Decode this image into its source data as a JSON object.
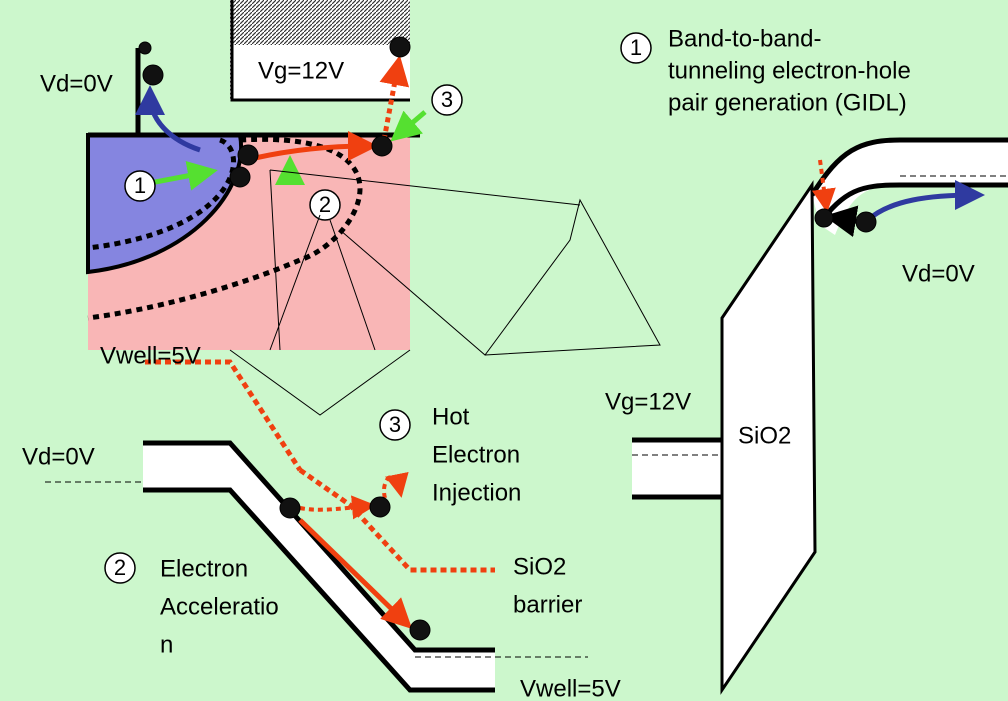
{
  "transistor": {
    "drain_label": "Vd=0V",
    "gate_label": "Vg=12V",
    "well_label": "Vwell=5V",
    "markers": [
      "1",
      "2",
      "3"
    ]
  },
  "gidl_band": {
    "marker": "1",
    "caption": [
      "Band-to-band-",
      "tunneling electron-hole",
      "pair generation (GIDL)"
    ],
    "drain_label": "Vd=0V",
    "gate_label": "Vg=12V",
    "oxide_label": "SiO2"
  },
  "hot_electron": {
    "marker": "3",
    "caption": [
      "Hot",
      "Electron",
      "Injection"
    ]
  },
  "acceleration_band": {
    "marker": "2",
    "caption": [
      "Electron",
      "Acceleratio",
      "n"
    ],
    "drain_label": "Vd=0V",
    "well_label": "Vwell=5V",
    "barrier_label": [
      "SiO2",
      "barrier"
    ]
  }
}
